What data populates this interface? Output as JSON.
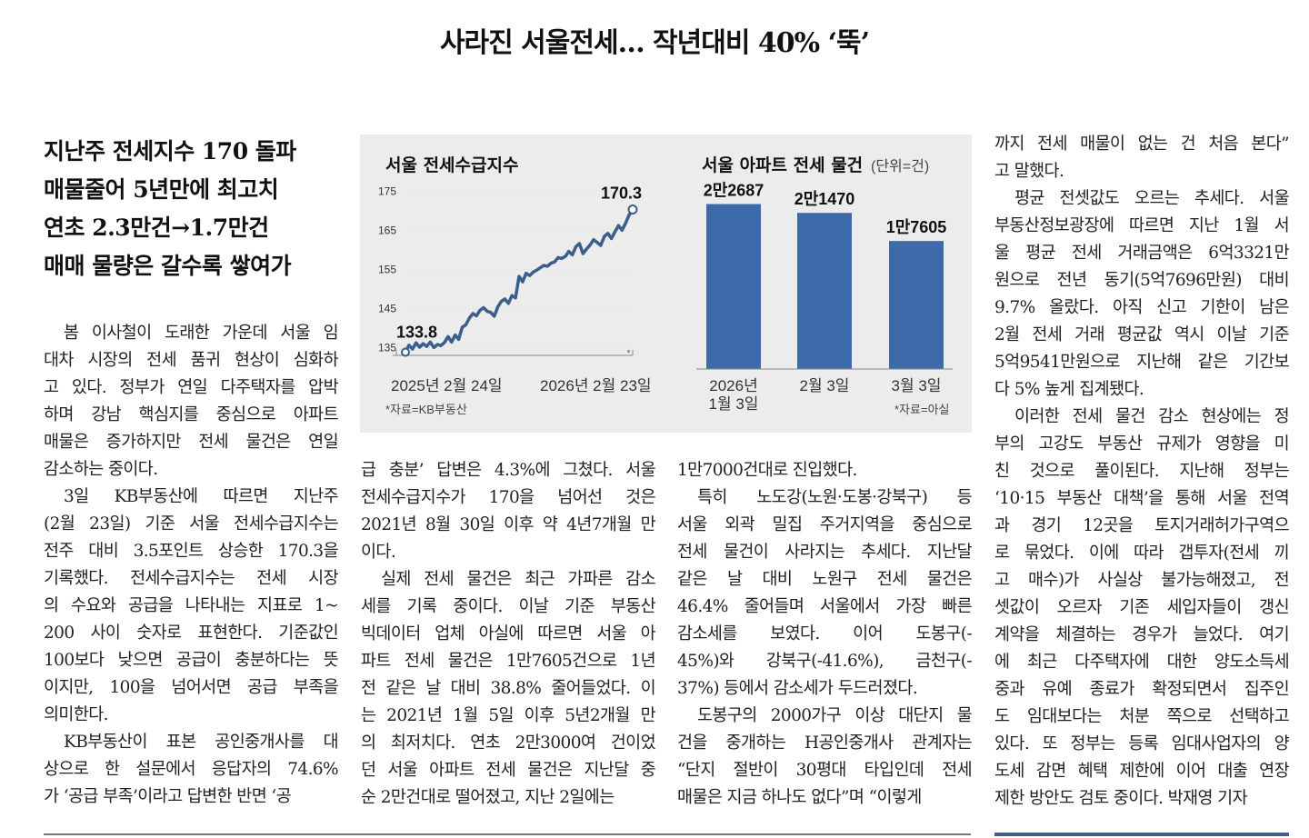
{
  "headline": "사라진 서울전세… 작년대비 40% ‘뚝’",
  "subheads": [
    "지난주 전세지수 170 돌파",
    "매물줄어 5년만에 최고치",
    "연초 2.3만건→1.7만건",
    "매매 물량은 갈수록 쌓여가"
  ],
  "columns": [
    [
      {
        "indent": true,
        "lines": [
          "봄 이사철이 도래한 가운데 서울 임",
          "대차 시장의 전세 품귀 현상이 심화하",
          "고 있다. 정부가 연일 다주택자를 압박",
          "하며 강남 핵심지를 중심으로 아파트",
          "매물은 증가하지만 전세 물건은 연일",
          "감소하는 중이다."
        ]
      },
      {
        "indent": true,
        "lines": [
          "3일 KB부동산에 따르면 지난주",
          "(2월 23일) 기준 서울 전세수급지수는",
          "전주 대비 3.5포인트 상승한 170.3을",
          "기록했다. 전세수급지수는 전세 시장",
          "의 수요와 공급을 나타내는 지표로 1~",
          "200 사이 숫자로 표현한다. 기준값인",
          "100보다 낮으면 공급이 충분하다는 뜻",
          "이지만, 100을 넘어서면 공급 부족을",
          "의미한다."
        ]
      },
      {
        "indent": true,
        "lines": [
          "KB부동산이 표본 공인중개사를 대",
          "상으로 한 설문에서 응답자의 74.6%",
          "가 ‘공급 부족’이라고 답변한 반면 ‘공"
        ]
      }
    ],
    [
      {
        "indent": false,
        "lines": [
          "급 충분’ 답변은 4.3%에 그쳤다. 서울",
          "전세수급지수가 170을 넘어선 것은",
          "2021년 8월 30일 이후 약 4년7개월 만",
          "이다."
        ]
      },
      {
        "indent": true,
        "lines": [
          "실제 전세 물건은 최근 가파른 감소",
          "세를 기록 중이다. 이날 기준 부동산",
          "빅데이터 업체 아실에 따르면 서울 아",
          "파트 전세 물건은 1만7605건으로 1년",
          "전 같은 날 대비 38.8% 줄어들었다. 이",
          "는 2021년 1월 5일 이후 5년2개월 만",
          "의 최저치다. 연초 2만3000여 건이었",
          "던 서울 아파트 전세 물건은 지난달 중",
          "순 2만건대로 떨어졌고, 지난 2일에는"
        ]
      }
    ],
    [
      {
        "indent": false,
        "lines": [
          "1만7000건대로 진입했다."
        ]
      },
      {
        "indent": true,
        "lines": [
          "특히 노도강(노원·도봉·강북구) 등",
          "서울 외곽 밀집 주거지역을 중심으로",
          "전세 물건이 사라지는 추세다. 지난달",
          "같은 날 대비 노원구 전세 물건은",
          "46.4% 줄어들며 서울에서 가장 빠른",
          "감소세를 보였다. 이어 도봉구(-",
          "45%)와 강북구(-41.6%), 금천구(-",
          "37%) 등에서 감소세가 두드러졌다."
        ]
      },
      {
        "indent": true,
        "lines": [
          "도봉구의 2000가구 이상 대단지 물",
          "건을 중개하는 H공인중개사 관계자는",
          "“단지 절반이 30평대 타입인데 전세",
          "매물은 지금 하나도 없다”며 “이렇게"
        ]
      }
    ],
    [
      {
        "indent": false,
        "lines": [
          "까지 전세 매물이 없는 건 처음 본다”",
          "고 말했다."
        ]
      },
      {
        "indent": true,
        "lines": [
          "평균 전셋값도 오르는 추세다. 서울",
          "부동산정보광장에 따르면 지난 1월 서",
          "울 평균 전세 거래금액은 6억3321만",
          "원으로 전년 동기(5억7696만원) 대비",
          "9.7% 올랐다. 아직 신고 기한이 남은",
          "2월 전세 거래 평균값 역시 이날 기준",
          "5억9541만원으로 지난해 같은 기간보",
          "다 5% 높게 집계됐다."
        ]
      },
      {
        "indent": true,
        "lines": [
          "이러한 전세 물건 감소 현상에는 정",
          "부의 고강도 부동산 규제가 영향을 미",
          "친 것으로 풀이된다. 지난해 정부는",
          "‘10·15 부동산 대책’을 통해 서울 전역",
          "과 경기 12곳을 토지거래허가구역으",
          "로 묶었다. 이에 따라 갭투자(전세 끼",
          "고 매수)가 사실상 불가능해졌고, 전",
          "셋값이 오르자 기존 세입자들이 갱신",
          "계약을 체결하는 경우가 늘었다. 여기",
          "에 최근 다주택자에 대한 양도소득세",
          "중과 유예 종료가 확정되면서 집주인",
          "도 임대보다는 처분 쪽으로 선택하고",
          "있다. 또 정부는 등록 임대사업자의 양",
          "도세 감면 혜택 제한에 이어 대출 연장",
          "제한 방안도 검토 중이다.  박재영 기자"
        ]
      }
    ]
  ],
  "chart_data": [
    {
      "type": "line",
      "title": "서울 전세수급지수",
      "source": "*자료=KB부동산",
      "x_start_label": "2025년 2월 24일",
      "x_end_label": "2026년 2월 23일",
      "start_value_label": "133.8",
      "end_value_label": "170.3",
      "yticks": [
        135,
        145,
        155,
        165,
        175
      ],
      "ylim": [
        133,
        176
      ],
      "values": [
        133.8,
        135.6,
        134.6,
        136.2,
        135.1,
        136.0,
        135.3,
        136.4,
        135.0,
        135.8,
        135.5,
        136.3,
        137.8,
        136.4,
        138.2,
        137.1,
        140.2,
        140.8,
        142.5,
        143.7,
        143.1,
        144.5,
        145.2,
        144.3,
        144.0,
        143.0,
        145.4,
        146.8,
        147.4,
        146.3,
        148.3,
        147.7,
        153.2,
        151.8,
        154.0,
        153.4,
        154.3,
        154.8,
        155.4,
        156.0,
        155.8,
        156.6,
        156.9,
        158.0,
        157.8,
        158.3,
        159.6,
        158.7,
        160.8,
        161.6,
        159.0,
        160.2,
        161.2,
        162.6,
        161.9,
        161.1,
        163.4,
        164.2,
        162.9,
        164.6,
        166.2,
        165.0,
        166.8,
        168.9,
        170.3
      ],
      "color": "#3b5f8c"
    },
    {
      "type": "bar",
      "title": "서울 아파트 전세 물건",
      "unit_label": "(단위=건)",
      "source": "*자료=아실",
      "categories": [
        [
          "2026년",
          "1월 3일"
        ],
        [
          "2월 3일"
        ],
        [
          "3월 3일"
        ]
      ],
      "values": [
        22687,
        21470,
        17605
      ],
      "value_labels": [
        "2만2687",
        "2만1470",
        "1만7605"
      ],
      "ylim": [
        0,
        25000
      ],
      "color": "#3d6aa8"
    }
  ]
}
